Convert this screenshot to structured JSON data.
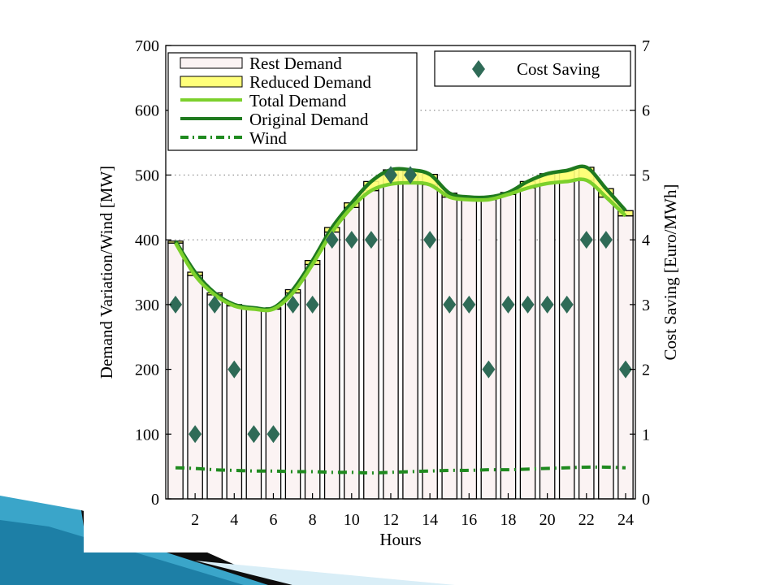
{
  "chart_data": {
    "type": "bar",
    "xlabel": "Hours",
    "ylabel_left": "Demand Variation/Wind [MW]",
    "ylabel_right": "Cost Saving [Euro/MWh]",
    "ylim_left": [
      0,
      700
    ],
    "ylim_right": [
      0,
      7
    ],
    "xlim": [
      0.5,
      24.5
    ],
    "yticks_left": [
      "0",
      "100",
      "200",
      "300",
      "400",
      "500",
      "600",
      "700"
    ],
    "yticks_right": [
      "0",
      "1",
      "2",
      "3",
      "4",
      "5",
      "6",
      "7"
    ],
    "xticks": [
      "2",
      "4",
      "6",
      "8",
      "10",
      "12",
      "14",
      "16",
      "18",
      "20",
      "22",
      "24"
    ],
    "hours": [
      1,
      2,
      3,
      4,
      5,
      6,
      7,
      8,
      9,
      10,
      11,
      12,
      13,
      14,
      15,
      16,
      17,
      18,
      19,
      20,
      21,
      22,
      23,
      24
    ],
    "series": [
      {
        "name": "Rest Demand",
        "values": [
          395,
          345,
          315,
          298,
          293,
          293,
          318,
          362,
          412,
          450,
          476,
          486,
          488,
          485,
          466,
          462,
          462,
          470,
          480,
          487,
          490,
          492,
          466,
          437
        ]
      },
      {
        "name": "Reduced Demand",
        "values": [
          3,
          5,
          3,
          2,
          2,
          2,
          5,
          6,
          7,
          7,
          14,
          22,
          20,
          16,
          6,
          4,
          4,
          3,
          10,
          15,
          17,
          20,
          13,
          8
        ]
      },
      {
        "name": "Total Demand",
        "values": [
          395,
          345,
          315,
          298,
          293,
          293,
          318,
          362,
          412,
          450,
          476,
          486,
          488,
          485,
          466,
          462,
          462,
          470,
          480,
          487,
          490,
          492,
          466,
          437
        ]
      },
      {
        "name": "Original Demand",
        "values": [
          398,
          350,
          318,
          300,
          295,
          295,
          323,
          368,
          419,
          457,
          490,
          508,
          508,
          501,
          472,
          466,
          466,
          473,
          490,
          502,
          507,
          512,
          479,
          445
        ]
      },
      {
        "name": "Wind",
        "values": [
          48,
          47,
          45,
          44,
          43,
          43,
          42,
          42,
          41,
          41,
          40,
          41,
          42,
          43,
          44,
          44,
          45,
          45,
          46,
          47,
          48,
          49,
          49,
          48
        ]
      },
      {
        "name": "Cost Saving",
        "axis": "right",
        "values": [
          3,
          1,
          3,
          2,
          1,
          1,
          3,
          3,
          4,
          4,
          4,
          5,
          5,
          4,
          3,
          3,
          2,
          3,
          3,
          3,
          3,
          4,
          4,
          2
        ]
      }
    ],
    "legend": {
      "left_entries": [
        "Rest Demand",
        "Reduced Demand",
        "Total Demand",
        "Original Demand",
        "Wind"
      ],
      "right_entries": [
        "Cost Saving"
      ],
      "placement_left": "top-left",
      "placement_right": "top-right"
    },
    "colors": {
      "rest_fill": "#fbf3f3",
      "reduced_fill": "#ffff7a",
      "total_line": "#7cd02c",
      "original_line": "#1f7a1f",
      "wind_line": "#1f8a1f",
      "diamond": "#2f6b57"
    },
    "grid": "dotted horizontal at 400, 500, 600"
  }
}
